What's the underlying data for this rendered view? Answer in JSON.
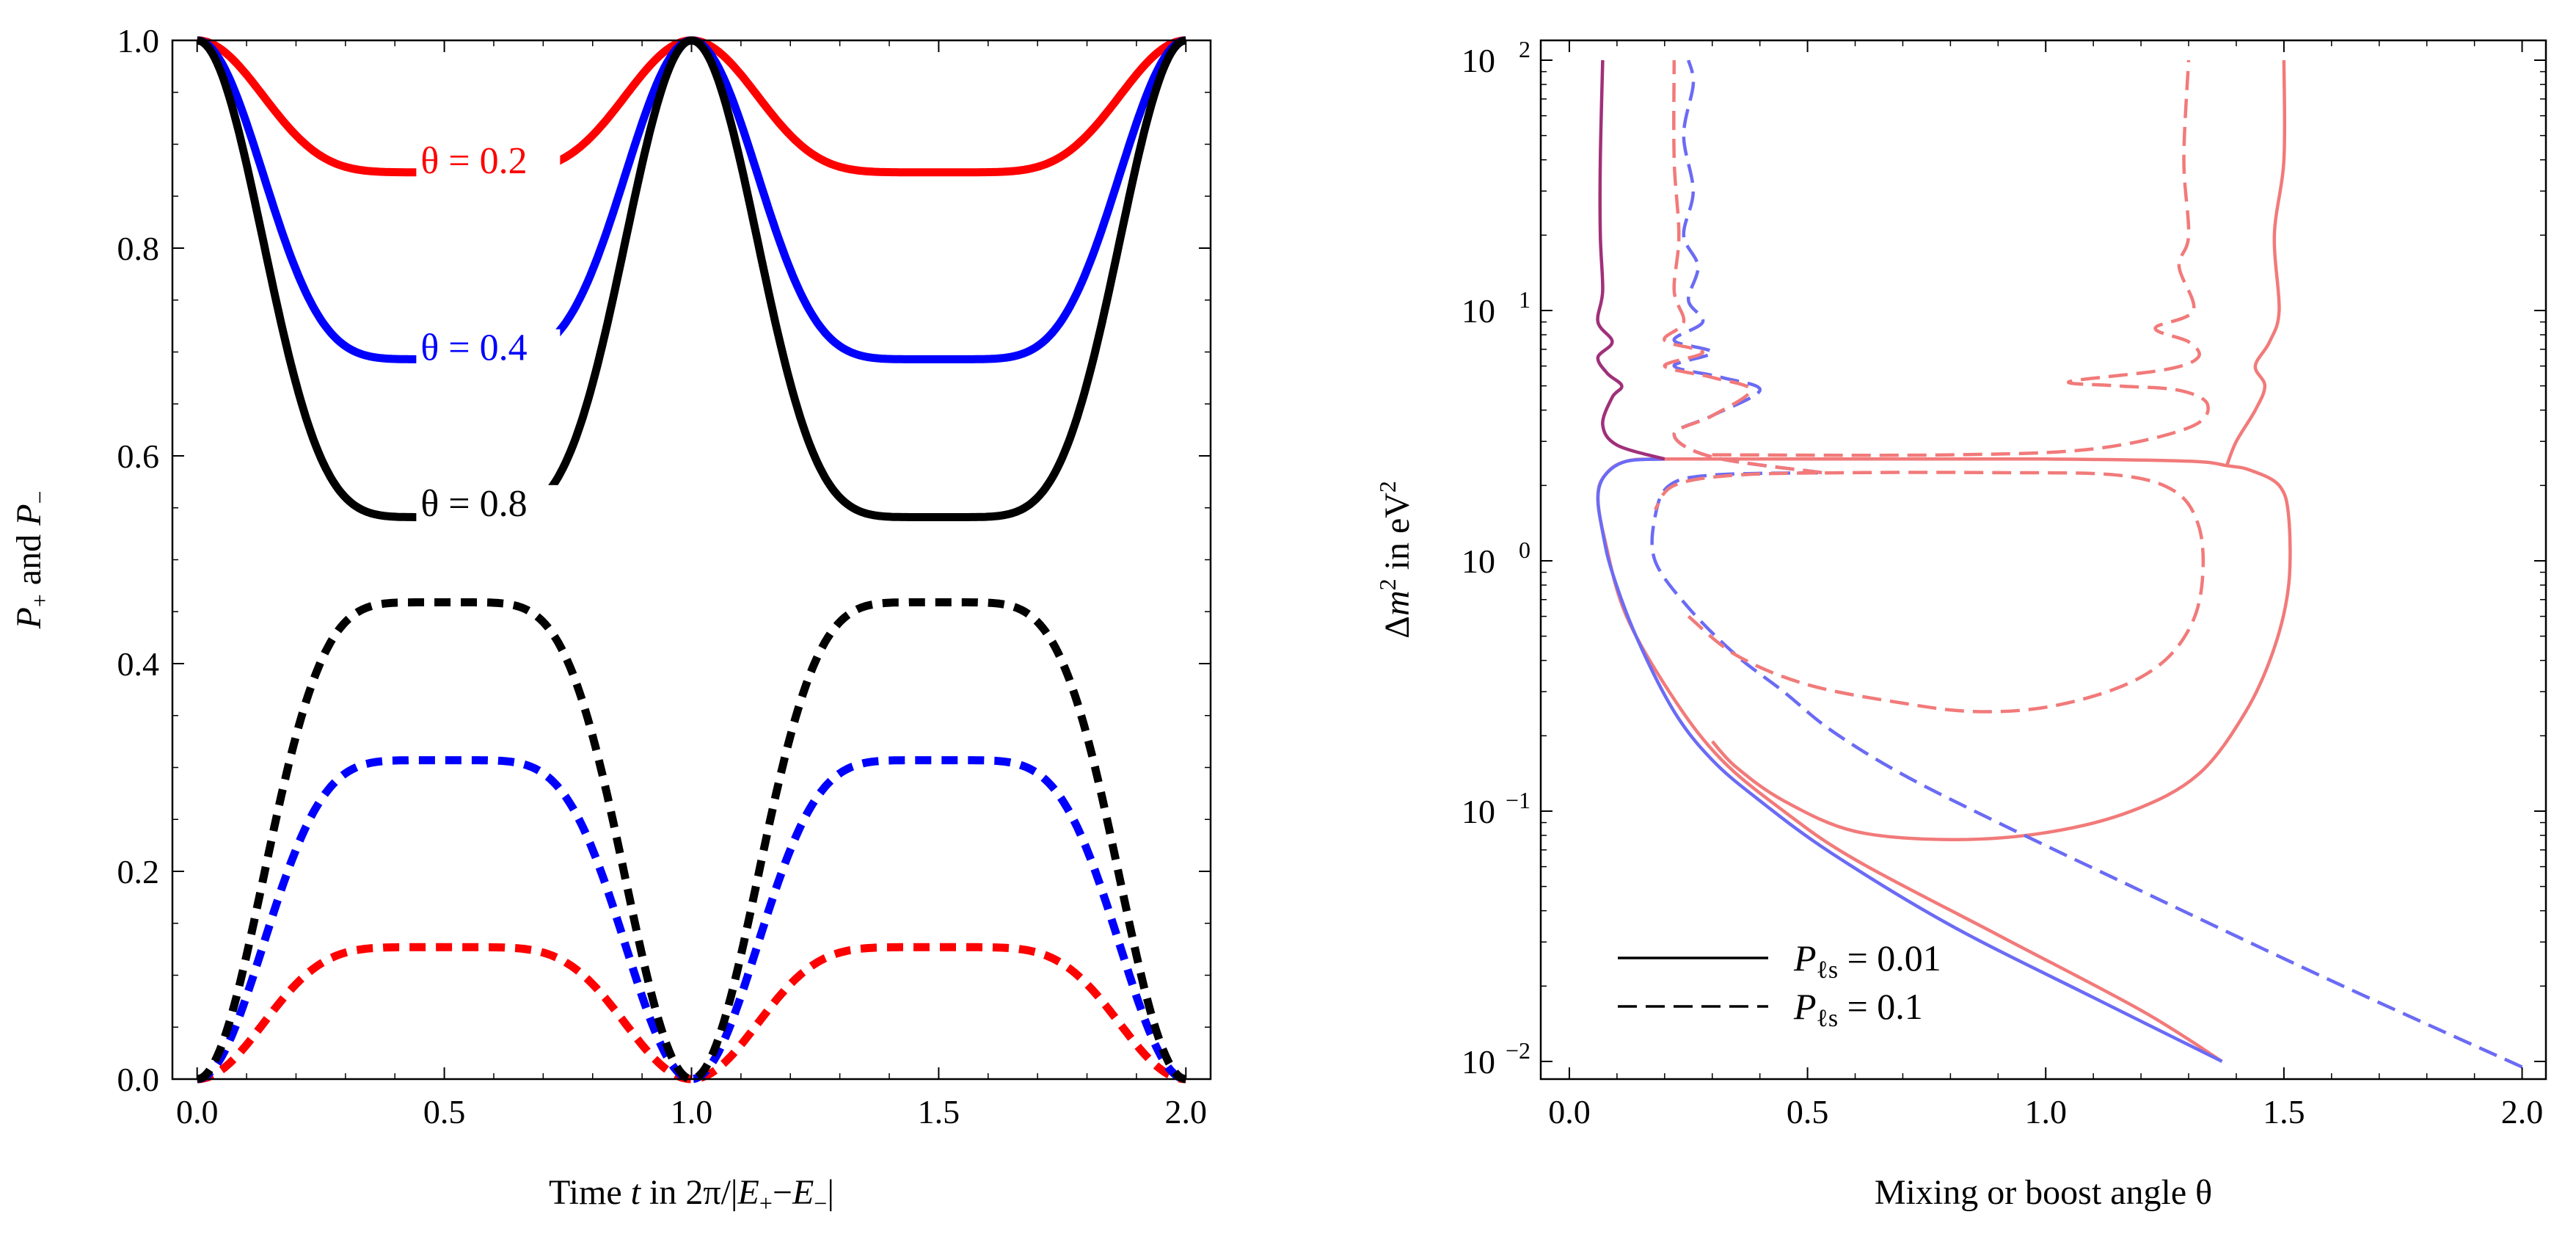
{
  "chart_data": [
    {
      "type": "line",
      "xlabel_parts": [
        "Time ",
        "t",
        " in 2π/|",
        "E",
        "+",
        "−",
        "E",
        "−",
        "|"
      ],
      "ylabel_parts": [
        "P",
        "+",
        " and ",
        "P",
        "−"
      ],
      "xlim": [
        -0.05,
        2.05
      ],
      "ylim": [
        0,
        1
      ],
      "xticks": [
        0.0,
        0.5,
        1.0,
        1.5,
        2.0
      ],
      "xtick_labels": [
        "0.0",
        "0.5",
        "1.0",
        "1.5",
        "2.0"
      ],
      "yticks": [
        0.0,
        0.2,
        0.4,
        0.6,
        0.8,
        1.0
      ],
      "ytick_labels": [
        "0.0",
        "0.2",
        "0.4",
        "0.6",
        "0.8",
        "1.0"
      ],
      "series": [
        {
          "name": "P+ θ=0.2",
          "color": "#ff0000",
          "style": "solid",
          "theta": 0.2,
          "min": 0.873
        },
        {
          "name": "P+ θ=0.4",
          "color": "#0000ff",
          "style": "solid",
          "theta": 0.4,
          "min": 0.693
        },
        {
          "name": "P+ θ=0.8",
          "color": "#000000",
          "style": "solid",
          "theta": 0.8,
          "min": 0.541
        },
        {
          "name": "P− θ=0.2",
          "color": "#ff0000",
          "style": "dashed",
          "theta": 0.2,
          "max": 0.127
        },
        {
          "name": "P− θ=0.4",
          "color": "#0000ff",
          "style": "dashed",
          "theta": 0.4,
          "max": 0.307
        },
        {
          "name": "P− θ=0.8",
          "color": "#000000",
          "style": "dashed",
          "theta": 0.8,
          "max": 0.459
        }
      ],
      "annotations": [
        {
          "text": "θ = 0.2",
          "color": "#ff0000",
          "x": 0.47,
          "y": 0.875
        },
        {
          "text": "θ = 0.4",
          "color": "#0000ff",
          "x": 0.47,
          "y": 0.695
        },
        {
          "text": "θ = 0.8",
          "color": "#000000",
          "x": 0.47,
          "y": 0.545
        }
      ]
    },
    {
      "type": "line",
      "xlabel": "Mixing or boost angle θ",
      "ylabel_parts": [
        "Δ",
        "m",
        "2",
        " in eV",
        "2"
      ],
      "yscale": "log",
      "xlim": [
        -0.06,
        2.05
      ],
      "ylim": [
        0.0085,
        120
      ],
      "xticks": [
        0.0,
        0.5,
        1.0,
        1.5,
        2.0
      ],
      "xtick_labels": [
        "0.0",
        "0.5",
        "1.0",
        "1.5",
        "2.0"
      ],
      "yticks": [
        0.01,
        0.1,
        1,
        10,
        100
      ],
      "ytick_bases": [
        "10",
        "10",
        "10",
        "10",
        "10"
      ],
      "ytick_exps": [
        "−2",
        "−1",
        "0",
        "1",
        "2"
      ],
      "series": [
        {
          "name": "red solid",
          "color": "#f27a7a",
          "style": "solid",
          "points": [
            [
              1.37,
              0.01
            ],
            [
              1.2,
              0.016
            ],
            [
              0.9,
              0.032
            ],
            [
              0.6,
              0.064
            ],
            [
              0.45,
              0.1
            ],
            [
              0.32,
              0.16
            ],
            [
              0.22,
              0.28
            ],
            [
              0.12,
              0.6
            ],
            [
              0.075,
              1.2
            ],
            [
              0.06,
              1.8
            ],
            [
              0.075,
              2.2
            ],
            [
              0.12,
              2.5
            ],
            [
              0.22,
              2.55
            ],
            [
              0.6,
              2.55
            ],
            [
              1.0,
              2.55
            ],
            [
              1.3,
              2.5
            ],
            [
              1.38,
              2.4
            ],
            [
              1.43,
              2.3
            ],
            [
              1.49,
              2.0
            ],
            [
              1.51,
              1.5
            ],
            [
              1.51,
              0.8
            ],
            [
              1.48,
              0.45
            ],
            [
              1.42,
              0.25
            ],
            [
              1.32,
              0.14
            ],
            [
              1.18,
              0.1
            ],
            [
              1.0,
              0.082
            ],
            [
              0.8,
              0.077
            ],
            [
              0.6,
              0.083
            ],
            [
              0.45,
              0.11
            ],
            [
              0.35,
              0.15
            ],
            [
              0.3,
              0.19
            ]
          ]
        },
        {
          "name": "red solid upper",
          "color": "#f27a7a",
          "style": "solid",
          "points": [
            [
              1.38,
              2.4
            ],
            [
              1.4,
              3.0
            ],
            [
              1.44,
              4.0
            ],
            [
              1.46,
              5.0
            ],
            [
              1.44,
              6.0
            ],
            [
              1.47,
              7.5
            ],
            [
              1.49,
              10
            ],
            [
              1.48,
              20
            ],
            [
              1.5,
              40
            ],
            [
              1.5,
              100
            ]
          ]
        },
        {
          "name": "blue solid",
          "color": "#6b6bf5",
          "style": "solid",
          "points": [
            [
              1.37,
              0.01
            ],
            [
              1.1,
              0.018
            ],
            [
              0.8,
              0.035
            ],
            [
              0.55,
              0.068
            ],
            [
              0.4,
              0.11
            ],
            [
              0.3,
              0.16
            ],
            [
              0.22,
              0.25
            ],
            [
              0.14,
              0.5
            ],
            [
              0.09,
              0.9
            ],
            [
              0.07,
              1.3
            ],
            [
              0.06,
              1.8
            ],
            [
              0.075,
              2.2
            ],
            [
              0.12,
              2.5
            ],
            [
              0.2,
              2.55
            ]
          ]
        },
        {
          "name": "purple solid upper",
          "color": "#a0307a",
          "style": "solid",
          "points": [
            [
              0.2,
              2.55
            ],
            [
              0.1,
              2.9
            ],
            [
              0.07,
              3.5
            ],
            [
              0.09,
              4.5
            ],
            [
              0.11,
              5.0
            ],
            [
              0.08,
              5.6
            ],
            [
              0.06,
              6.5
            ],
            [
              0.09,
              7.5
            ],
            [
              0.06,
              9
            ],
            [
              0.07,
              12
            ],
            [
              0.065,
              20
            ],
            [
              0.065,
              40
            ],
            [
              0.07,
              100
            ]
          ]
        },
        {
          "name": "blue dashed",
          "color": "#6b6bf5",
          "style": "dashed",
          "points": [
            [
              2.0,
              0.0095
            ],
            [
              1.6,
              0.021
            ],
            [
              1.2,
              0.048
            ],
            [
              0.9,
              0.09
            ],
            [
              0.7,
              0.14
            ],
            [
              0.55,
              0.21
            ],
            [
              0.45,
              0.3
            ],
            [
              0.35,
              0.42
            ],
            [
              0.25,
              0.65
            ],
            [
              0.18,
              1.0
            ],
            [
              0.18,
              1.5
            ],
            [
              0.21,
              2.0
            ],
            [
              0.3,
              2.2
            ],
            [
              0.53,
              2.25
            ]
          ]
        },
        {
          "name": "blue dashed upper",
          "color": "#6b6bf5",
          "style": "dashed",
          "points": [
            [
              0.53,
              2.25
            ],
            [
              0.3,
              2.6
            ],
            [
              0.22,
              3.2
            ],
            [
              0.3,
              3.8
            ],
            [
              0.4,
              4.8
            ],
            [
              0.32,
              5.4
            ],
            [
              0.22,
              6.0
            ],
            [
              0.3,
              6.8
            ],
            [
              0.22,
              7.6
            ],
            [
              0.28,
              9
            ],
            [
              0.25,
              11
            ],
            [
              0.27,
              15
            ],
            [
              0.24,
              20
            ],
            [
              0.26,
              30
            ],
            [
              0.24,
              50
            ],
            [
              0.26,
              80
            ],
            [
              0.25,
              100
            ]
          ]
        },
        {
          "name": "red dashed",
          "color": "#f27a7a",
          "style": "dashed",
          "points": [
            [
              0.25,
              0.6
            ],
            [
              0.35,
              0.42
            ],
            [
              0.5,
              0.32
            ],
            [
              0.7,
              0.27
            ],
            [
              0.85,
              0.25
            ],
            [
              1.0,
              0.26
            ],
            [
              1.15,
              0.31
            ],
            [
              1.25,
              0.4
            ],
            [
              1.31,
              0.58
            ],
            [
              1.33,
              0.9
            ],
            [
              1.32,
              1.4
            ],
            [
              1.27,
              1.9
            ],
            [
              1.15,
              2.2
            ],
            [
              0.9,
              2.25
            ],
            [
              0.6,
              2.25
            ],
            [
              0.35,
              2.2
            ],
            [
              0.22,
              2.0
            ],
            [
              0.18,
              1.6
            ]
          ]
        },
        {
          "name": "red dashed upper left",
          "color": "#f27a7a",
          "style": "dashed",
          "points": [
            [
              0.53,
              2.25
            ],
            [
              0.3,
              2.6
            ],
            [
              0.22,
              3.2
            ],
            [
              0.3,
              3.8
            ],
            [
              0.38,
              4.8
            ],
            [
              0.3,
              5.4
            ],
            [
              0.2,
              6.0
            ],
            [
              0.28,
              6.8
            ],
            [
              0.2,
              7.6
            ],
            [
              0.24,
              9
            ],
            [
              0.22,
              12
            ],
            [
              0.23,
              20
            ],
            [
              0.22,
              40
            ],
            [
              0.22,
              100
            ]
          ]
        },
        {
          "name": "red dashed upper right",
          "color": "#f27a7a",
          "style": "dashed",
          "points": [
            [
              0.3,
              2.65
            ],
            [
              0.8,
              2.65
            ],
            [
              1.1,
              2.8
            ],
            [
              1.3,
              3.4
            ],
            [
              1.34,
              4.2
            ],
            [
              1.28,
              4.8
            ],
            [
              1.15,
              5.0
            ],
            [
              1.05,
              5.2
            ],
            [
              1.25,
              5.8
            ],
            [
              1.32,
              6.5
            ],
            [
              1.3,
              7.5
            ],
            [
              1.23,
              8.5
            ],
            [
              1.31,
              10
            ],
            [
              1.28,
              15
            ],
            [
              1.3,
              20
            ],
            [
              1.29,
              40
            ],
            [
              1.3,
              100
            ]
          ]
        }
      ],
      "legend": [
        {
          "label_parts": [
            "P",
            "ℓs",
            " = 0.01"
          ],
          "style": "solid"
        },
        {
          "label_parts": [
            "P",
            "ℓs",
            " = 0.1"
          ],
          "style": "dashed"
        }
      ],
      "legend_loc": "lower-left"
    }
  ]
}
